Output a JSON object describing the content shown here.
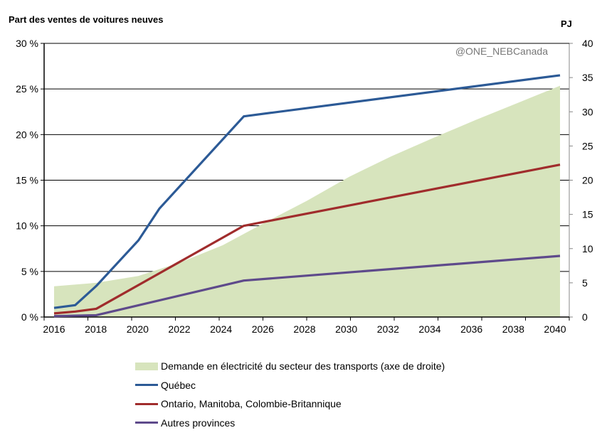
{
  "chart_data": {
    "type": "line",
    "title": "",
    "ylabel_left": "Part des ventes de voitures neuves",
    "ylabel_right": "PJ",
    "watermark": "@ONE_NEBCanada",
    "x_ticks": [
      "2016",
      "2018",
      "2020",
      "2022",
      "2024",
      "2026",
      "2028",
      "2030",
      "2032",
      "2034",
      "2036",
      "2038",
      "2040"
    ],
    "y_left": {
      "range": [
        0,
        30
      ],
      "ticks": [
        "0 %",
        "5 %",
        "10 %",
        "15 %",
        "20 %",
        "25 %",
        "30 %"
      ]
    },
    "y_right": {
      "range": [
        0,
        40
      ],
      "ticks": [
        "0",
        "5",
        "10",
        "15",
        "20",
        "25",
        "30",
        "35",
        "40"
      ]
    },
    "grid": true,
    "legend_position": "bottom",
    "area": {
      "name": "Demande en électricité du secteur des transports (axe de droite)",
      "axis": "right",
      "color": "#d7e4bd",
      "x": [
        2016,
        2018,
        2020,
        2022,
        2024,
        2026,
        2028,
        2030,
        2032,
        2034,
        2036,
        2038,
        2040
      ],
      "values": [
        4.5,
        5.0,
        6.0,
        8.0,
        10.5,
        13.8,
        17.0,
        20.5,
        23.5,
        26.2,
        28.8,
        31.3,
        33.8
      ]
    },
    "series": [
      {
        "name": "Québec",
        "color": "#2c5a96",
        "x": [
          2016,
          2017,
          2018,
          2020,
          2021,
          2025,
          2040
        ],
        "values": [
          1.0,
          1.3,
          3.4,
          8.4,
          11.9,
          22.0,
          26.5
        ]
      },
      {
        "name": "Ontario, Manitoba, Colombie-Britannique",
        "color": "#a02c2c",
        "x": [
          2016,
          2017,
          2018,
          2025,
          2040
        ],
        "values": [
          0.4,
          0.6,
          0.9,
          10.0,
          16.7
        ]
      },
      {
        "name": "Autres provinces",
        "color": "#5e4a8b",
        "x": [
          2016,
          2017,
          2018,
          2025,
          2040
        ],
        "values": [
          0.1,
          0.15,
          0.2,
          4.0,
          6.7
        ]
      }
    ]
  }
}
